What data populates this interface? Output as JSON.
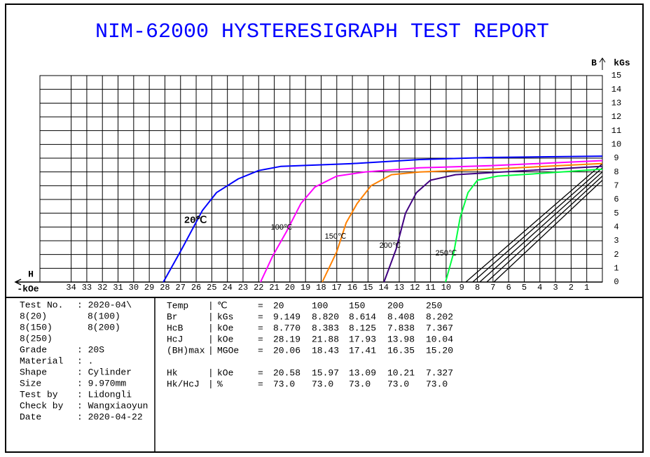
{
  "title": "NIM-62000 HYSTERESIGRAPH TEST REPORT",
  "chart_data": {
    "type": "line",
    "x_axis_label": "H",
    "x_unit_label": "-kOe",
    "y_axis_label": "B",
    "y_unit_label": "kGs",
    "xlim": [
      -36,
      0
    ],
    "ylim": [
      0,
      15
    ],
    "xticks": [
      {
        "value": -34,
        "label": "34"
      },
      {
        "value": -33,
        "label": "33"
      },
      {
        "value": -32,
        "label": "32"
      },
      {
        "value": -31,
        "label": "31"
      },
      {
        "value": -30,
        "label": "30"
      },
      {
        "value": -29,
        "label": "29"
      },
      {
        "value": -28,
        "label": "28"
      },
      {
        "value": -27,
        "label": "27"
      },
      {
        "value": -26,
        "label": "26"
      },
      {
        "value": -25,
        "label": "25"
      },
      {
        "value": -24,
        "label": "24"
      },
      {
        "value": -23,
        "label": "23"
      },
      {
        "value": -22,
        "label": "22"
      },
      {
        "value": -21,
        "label": "21"
      },
      {
        "value": -20,
        "label": "20"
      },
      {
        "value": -19,
        "label": "19"
      },
      {
        "value": -18,
        "label": "18"
      },
      {
        "value": -17,
        "label": "17"
      },
      {
        "value": -16,
        "label": "16"
      },
      {
        "value": -15,
        "label": "15"
      },
      {
        "value": -14,
        "label": "14"
      },
      {
        "value": -13,
        "label": "13"
      },
      {
        "value": -12,
        "label": "12"
      },
      {
        "value": -11,
        "label": "11"
      },
      {
        "value": -10,
        "label": "10"
      },
      {
        "value": -9,
        "label": "9"
      },
      {
        "value": -8,
        "label": "8"
      },
      {
        "value": -7,
        "label": "7"
      },
      {
        "value": -6,
        "label": "6"
      },
      {
        "value": -5,
        "label": "5"
      },
      {
        "value": -4,
        "label": "4"
      },
      {
        "value": -3,
        "label": "3"
      },
      {
        "value": -2,
        "label": "2"
      },
      {
        "value": -1,
        "label": "1"
      }
    ],
    "yticks": [
      0,
      1,
      2,
      3,
      4,
      5,
      6,
      7,
      8,
      9,
      10,
      11,
      12,
      13,
      14,
      15
    ],
    "grid": true,
    "series": [
      {
        "name": "20℃",
        "color": "#0000ff",
        "x": [
          -28.1,
          -26.9,
          -25.6,
          -24.7,
          -23.3,
          -22.0,
          -20.6,
          -16.1,
          -11.7,
          -7.2,
          0
        ],
        "values": [
          0,
          2.44,
          5.2,
          6.5,
          7.5,
          8.1,
          8.4,
          8.6,
          8.9,
          9.05,
          9.149
        ]
      },
      {
        "name": "100℃",
        "color": "#ff00ff",
        "x": [
          -21.88,
          -21.1,
          -20.2,
          -19.3,
          -18.4,
          -17.0,
          -15.2,
          -11.7,
          -7.2,
          0
        ],
        "values": [
          0,
          1.9,
          3.7,
          5.7,
          6.9,
          7.7,
          8.0,
          8.3,
          8.45,
          8.82
        ]
      },
      {
        "name": "150℃",
        "color": "#ff8000",
        "x": [
          -17.93,
          -17.0,
          -16.4,
          -15.7,
          -14.8,
          -13.5,
          -11.7,
          -7.2,
          0
        ],
        "values": [
          0,
          2.2,
          4.3,
          5.7,
          7.0,
          7.8,
          8.0,
          8.2,
          8.614
        ]
      },
      {
        "name": "200℃",
        "color": "#400080",
        "x": [
          -13.98,
          -13.2,
          -12.6,
          -11.9,
          -11.0,
          -9.4,
          -7.2,
          0
        ],
        "values": [
          0,
          2.4,
          5.0,
          6.5,
          7.4,
          7.8,
          7.95,
          8.408
        ]
      },
      {
        "name": "250℃",
        "color": "#00ff40",
        "x": [
          -10.04,
          -9.5,
          -9.1,
          -8.6,
          -8.0,
          -6.7,
          -4.5,
          0
        ],
        "values": [
          0,
          2.2,
          4.7,
          6.5,
          7.4,
          7.7,
          7.85,
          8.202
        ]
      }
    ],
    "recoil_lines": {
      "color": "#000000",
      "lines": [
        {
          "x": [
            -8.74,
            0
          ],
          "values": [
            0,
            8.6
          ]
        },
        {
          "x": [
            -8.3,
            0
          ],
          "values": [
            0,
            8.3
          ]
        },
        {
          "x": [
            -7.85,
            0
          ],
          "values": [
            0,
            8.0
          ]
        },
        {
          "x": [
            -7.4,
            0
          ],
          "values": [
            0,
            7.7
          ]
        },
        {
          "x": [
            -6.95,
            0
          ],
          "values": [
            0,
            7.4
          ]
        }
      ]
    }
  },
  "info": {
    "rows": [
      [
        "Test No.",
        ": 2020-04\\"
      ],
      [
        "8(20)",
        "8(100)"
      ],
      [
        "8(150)",
        "8(200)"
      ],
      [
        "8(250)",
        ""
      ],
      [
        "Grade",
        ": 20S"
      ],
      [
        "Material",
        ": ."
      ],
      [
        "Shape",
        ": Cylinder"
      ],
      [
        "Size",
        ": 9.970mm"
      ],
      [
        "Test by",
        ": Lidongli"
      ],
      [
        "Check by",
        ": Wangxiaoyun"
      ],
      [
        "Date",
        ": 2020-04-22"
      ]
    ]
  },
  "results": {
    "separator": "|",
    "equals": "=",
    "rows": [
      {
        "label": "Temp",
        "unit": "℃",
        "values": [
          "20",
          "100",
          "150",
          "200",
          "250"
        ]
      },
      {
        "label": "Br",
        "unit": "kGs",
        "values": [
          "9.149",
          "8.820",
          "8.614",
          "8.408",
          "8.202"
        ]
      },
      {
        "label": "HcB",
        "unit": "kOe",
        "values": [
          "8.770",
          "8.383",
          "8.125",
          "7.838",
          "7.367"
        ]
      },
      {
        "label": "HcJ",
        "unit": "kOe",
        "values": [
          "28.19",
          "21.88",
          "17.93",
          "13.98",
          "10.04"
        ]
      },
      {
        "label": "(BH)max",
        "unit": "MGOe",
        "values": [
          "20.06",
          "18.43",
          "17.41",
          "16.35",
          "15.20"
        ]
      },
      {
        "label": "Hk",
        "unit": "kOe",
        "values": [
          "20.58",
          "15.97",
          "13.09",
          "10.21",
          "7.327"
        ]
      },
      {
        "label": "Hk/HcJ",
        "unit": "%",
        "values": [
          "73.0",
          "73.0",
          "73.0",
          "73.0",
          "73.0"
        ]
      }
    ]
  }
}
